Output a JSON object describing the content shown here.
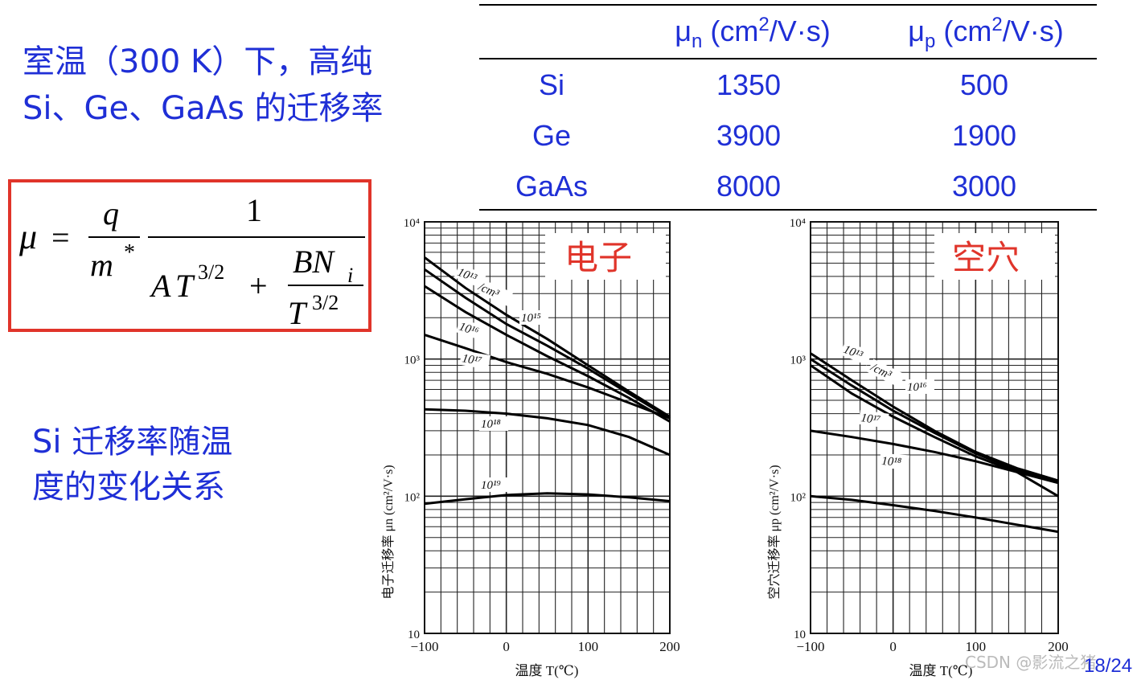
{
  "title": {
    "line1": "室温（300 K）下，高纯",
    "line2": "Si、Ge、GaAs 的迁移率"
  },
  "subtitle": {
    "line1": "Si 迁移率随温",
    "line2": "度的变化关系"
  },
  "formula": {
    "mu": "μ",
    "eq": "=",
    "q": "q",
    "m": "m",
    "star": "*",
    "one": "1",
    "A": "A",
    "T": "T",
    "exp": "3/2",
    "plus": "+",
    "BN": "BN",
    "i": "i"
  },
  "mobility_table": {
    "headers": [
      {
        "sym": "μ",
        "sub": "n",
        "unit_a": " (cm",
        "sup": "2",
        "unit_b": "/V·s)"
      },
      {
        "sym": "μ",
        "sub": "p",
        "unit_a": " (cm",
        "sup": "2",
        "unit_b": "/V·s)"
      }
    ],
    "rows": [
      {
        "material": "Si",
        "mu_n": "1350",
        "mu_p": "500",
        "highlight": true
      },
      {
        "material": "Ge",
        "mu_n": "3900",
        "mu_p": "1900",
        "highlight": false
      },
      {
        "material": "GaAs",
        "mu_n": "8000",
        "mu_p": "3000",
        "highlight": false
      }
    ],
    "colors": {
      "text": "#1f2fd6",
      "highlight": "#e0342a"
    }
  },
  "chart_data": [
    {
      "type": "line",
      "title": "电子",
      "xlabel": "温度 T(℃)",
      "ylabel": "电子迁移率 μn (cm²/V·s)",
      "x_ticks": [
        "−100",
        "0",
        "100",
        "200"
      ],
      "y_ticks": [
        "10",
        "10²",
        "10³",
        "10⁴"
      ],
      "xlim": [
        -100,
        200
      ],
      "ylim": [
        10,
        10000
      ],
      "scale_y": "log",
      "grid": true,
      "series": [
        {
          "name": "10¹³/cm³",
          "x": [
            -100,
            -50,
            0,
            50,
            100,
            150,
            200
          ],
          "y": [
            5500,
            3300,
            2100,
            1400,
            900,
            580,
            380
          ]
        },
        {
          "name": "10¹⁵",
          "x": [
            -100,
            -50,
            0,
            50,
            100,
            150,
            200
          ],
          "y": [
            4500,
            2800,
            1800,
            1250,
            850,
            560,
            370
          ]
        },
        {
          "name": "10¹⁶",
          "x": [
            -100,
            -50,
            0,
            50,
            100,
            150,
            200
          ],
          "y": [
            3400,
            2200,
            1500,
            1050,
            750,
            520,
            350
          ]
        },
        {
          "name": "10¹⁷",
          "x": [
            -100,
            -50,
            0,
            50,
            100,
            150,
            200
          ],
          "y": [
            1500,
            1200,
            950,
            780,
            620,
            480,
            370
          ]
        },
        {
          "name": "10¹⁸",
          "x": [
            -100,
            -50,
            0,
            50,
            100,
            150,
            200
          ],
          "y": [
            430,
            420,
            400,
            370,
            330,
            270,
            200
          ]
        },
        {
          "name": "10¹⁹",
          "x": [
            -100,
            -50,
            0,
            50,
            100,
            150,
            200
          ],
          "y": [
            88,
            95,
            102,
            105,
            103,
            98,
            92
          ]
        }
      ],
      "labels": [
        "10¹³",
        "/cm³",
        "10¹⁵",
        "10¹⁶",
        "10¹⁷",
        "10¹⁸",
        "10¹⁹"
      ]
    },
    {
      "type": "line",
      "title": "空穴",
      "xlabel": "温度 T(℃)",
      "ylabel": "空穴迁移率 μp (cm²/V·s)",
      "x_ticks": [
        "−100",
        "0",
        "100",
        "200"
      ],
      "y_ticks": [
        "10",
        "10²",
        "10³",
        "10⁴"
      ],
      "xlim": [
        -100,
        200
      ],
      "ylim": [
        10,
        10000
      ],
      "scale_y": "log",
      "grid": true,
      "series": [
        {
          "name": "10¹³/cm³",
          "x": [
            -100,
            -50,
            0,
            50,
            100,
            150,
            200
          ],
          "y": [
            1100,
            700,
            450,
            300,
            210,
            160,
            130
          ]
        },
        {
          "name": "10¹⁶",
          "x": [
            -100,
            -50,
            0,
            50,
            100,
            150,
            200
          ],
          "y": [
            1000,
            640,
            420,
            290,
            205,
            155,
            128
          ]
        },
        {
          "name": "10¹⁷",
          "x": [
            -100,
            -50,
            0,
            50,
            100,
            150,
            200
          ],
          "y": [
            900,
            560,
            380,
            270,
            195,
            150,
            125
          ]
        },
        {
          "name": "10¹⁸",
          "x": [
            -100,
            -50,
            0,
            50,
            100,
            150,
            200
          ],
          "y": [
            300,
            270,
            240,
            210,
            180,
            150,
            100
          ]
        },
        {
          "name": "",
          "x": [
            -100,
            -50,
            0,
            50,
            100,
            150,
            200
          ],
          "y": [
            100,
            94,
            86,
            78,
            70,
            62,
            55
          ]
        }
      ],
      "labels": [
        "10¹³",
        "/cm³",
        "10¹⁶",
        "10¹⁷",
        "10¹⁸"
      ]
    }
  ],
  "watermark": "CSDN @影流之猪",
  "page_number": "18/24"
}
